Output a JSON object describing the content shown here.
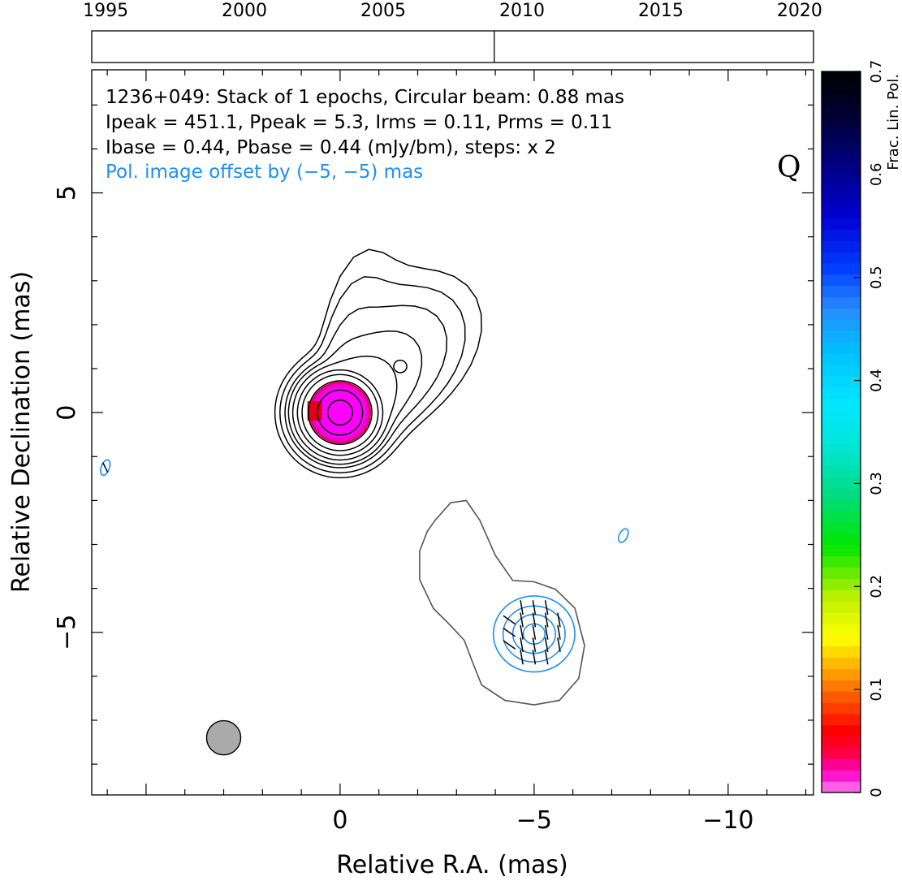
{
  "chart_data": {
    "type": "heatmap",
    "timeline": {
      "years": [
        "1995",
        "2000",
        "2005",
        "2010",
        "2015",
        "2020"
      ],
      "epochs": [
        2009.0
      ],
      "range": [
        1994.5,
        2020.5
      ]
    },
    "annotations": {
      "line1": "1236+049: Stack of 1 epochs, Circular beam: 0.88 mas",
      "line2": "Ipeak = 451.1, Ppeak = 5.3, Irms = 0.11, Prms = 0.11",
      "line3": "Ibase = 0.44, Pbase = 0.44 (mJy/bm), steps: x 2",
      "line4": "Pol. image offset by (−5, −5) mas",
      "band": "Q"
    },
    "xlabel": "Relative R.A. (mas)",
    "ylabel": "Relative Declination (mas)",
    "colorbar_label": "Frac. Lin. Pol.",
    "x_ticks": [
      "0",
      "−5",
      "−10"
    ],
    "y_ticks": [
      "5",
      "0",
      "−5"
    ],
    "colorbar_ticks": [
      "0",
      "0.1",
      "0.2",
      "0.3",
      "0.4",
      "0.5",
      "0.6",
      "0.7"
    ],
    "xlim": [
      6.4,
      -12.2
    ],
    "ylim": [
      -8.7,
      7.8
    ],
    "colorbar_range": [
      0,
      0.7
    ],
    "beam_fwhm_mas": 0.88,
    "beam_center": [
      3.0,
      -7.4
    ],
    "total_intensity_peak": {
      "x": 0.0,
      "y": 0.0,
      "value_mJy": 451.1
    },
    "secondary_component": {
      "x": -1.55,
      "y": 1.05
    },
    "polarized_peak": {
      "x": -5.0,
      "y": -5.0,
      "value_mJy": 5.3
    },
    "frac_pol_core_value": 0.02,
    "colors": {
      "ticks_black": "#000000",
      "pol_contour": "#1f8ff0",
      "offset_contour": "#555555",
      "beam": "#aaaaaa",
      "core_fill": "#ff00ff",
      "core_edge": "#e8001a"
    }
  }
}
